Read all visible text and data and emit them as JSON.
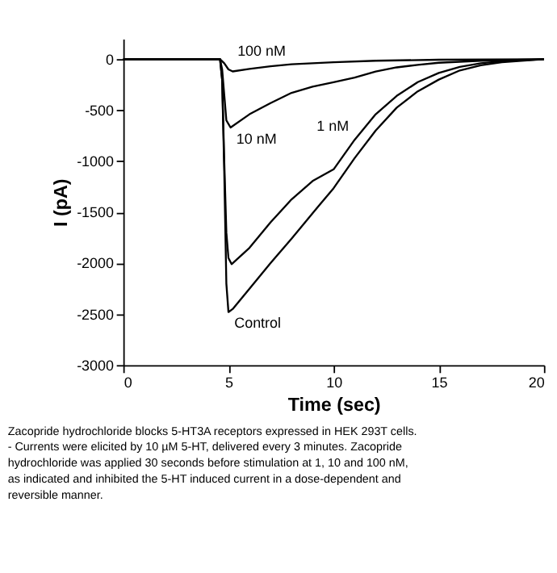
{
  "chart_data": {
    "type": "line",
    "xlabel": "Time (sec)",
    "ylabel": "I (pA)",
    "xlim": [
      0,
      20
    ],
    "ylim": [
      -3000,
      200
    ],
    "xticks": [
      0,
      5,
      10,
      15,
      20
    ],
    "yticks": [
      -3000,
      -2500,
      -2000,
      -1500,
      -1000,
      -500,
      0
    ],
    "grid": false,
    "marker": "none",
    "line_style": "solid",
    "series": [
      {
        "name": "100 nM",
        "color": "#000000",
        "x": [
          0,
          4.6,
          4.8,
          5.0,
          5.2,
          6,
          7,
          8,
          10,
          12,
          15,
          20
        ],
        "values": [
          0,
          0,
          -40,
          -100,
          -120,
          -95,
          -70,
          -50,
          -30,
          -15,
          -5,
          0
        ]
      },
      {
        "name": "10 nM",
        "color": "#000000",
        "x": [
          0,
          4.6,
          4.7,
          4.8,
          4.9,
          5.1,
          6,
          7,
          8,
          9,
          10,
          11,
          12,
          13,
          14,
          15,
          17,
          20
        ],
        "values": [
          0,
          0,
          -100,
          -350,
          -600,
          -670,
          -540,
          -430,
          -330,
          -270,
          -225,
          -180,
          -120,
          -80,
          -55,
          -35,
          -15,
          0
        ]
      },
      {
        "name": "1 nM",
        "color": "#000000",
        "x": [
          0,
          4.6,
          4.7,
          4.8,
          4.9,
          5.0,
          5.15,
          6,
          7,
          8,
          9,
          10,
          11,
          12,
          13,
          14,
          15,
          16,
          17,
          18,
          20
        ],
        "values": [
          0,
          0,
          -200,
          -1000,
          -1700,
          -1950,
          -2010,
          -1850,
          -1600,
          -1375,
          -1195,
          -1080,
          -790,
          -540,
          -360,
          -225,
          -135,
          -75,
          -40,
          -20,
          0
        ]
      },
      {
        "name": "Control",
        "color": "#000000",
        "x": [
          0,
          4.6,
          4.7,
          4.8,
          4.9,
          5.0,
          5.2,
          6,
          7,
          8,
          9,
          10,
          11,
          12,
          13,
          14,
          15,
          16,
          17,
          18,
          20
        ],
        "values": [
          0,
          0,
          -200,
          -1100,
          -2200,
          -2480,
          -2450,
          -2250,
          -2000,
          -1760,
          -1510,
          -1265,
          -970,
          -700,
          -475,
          -315,
          -200,
          -110,
          -60,
          -30,
          0
        ]
      }
    ],
    "annotations": [
      "Zacopride hydrochloride blocks 5-HT3A receptors expressed in HEK 293T cells.  - Currents were elicited by 10 µM 5-HT, delivered every 3 minutes. Zacopride hydrochloride was applied 30 seconds before stimulation at 1, 10 and 100 nM, as indicated and inhibited the 5-HT induced current in a dose-dependent and reversible manner."
    ]
  }
}
